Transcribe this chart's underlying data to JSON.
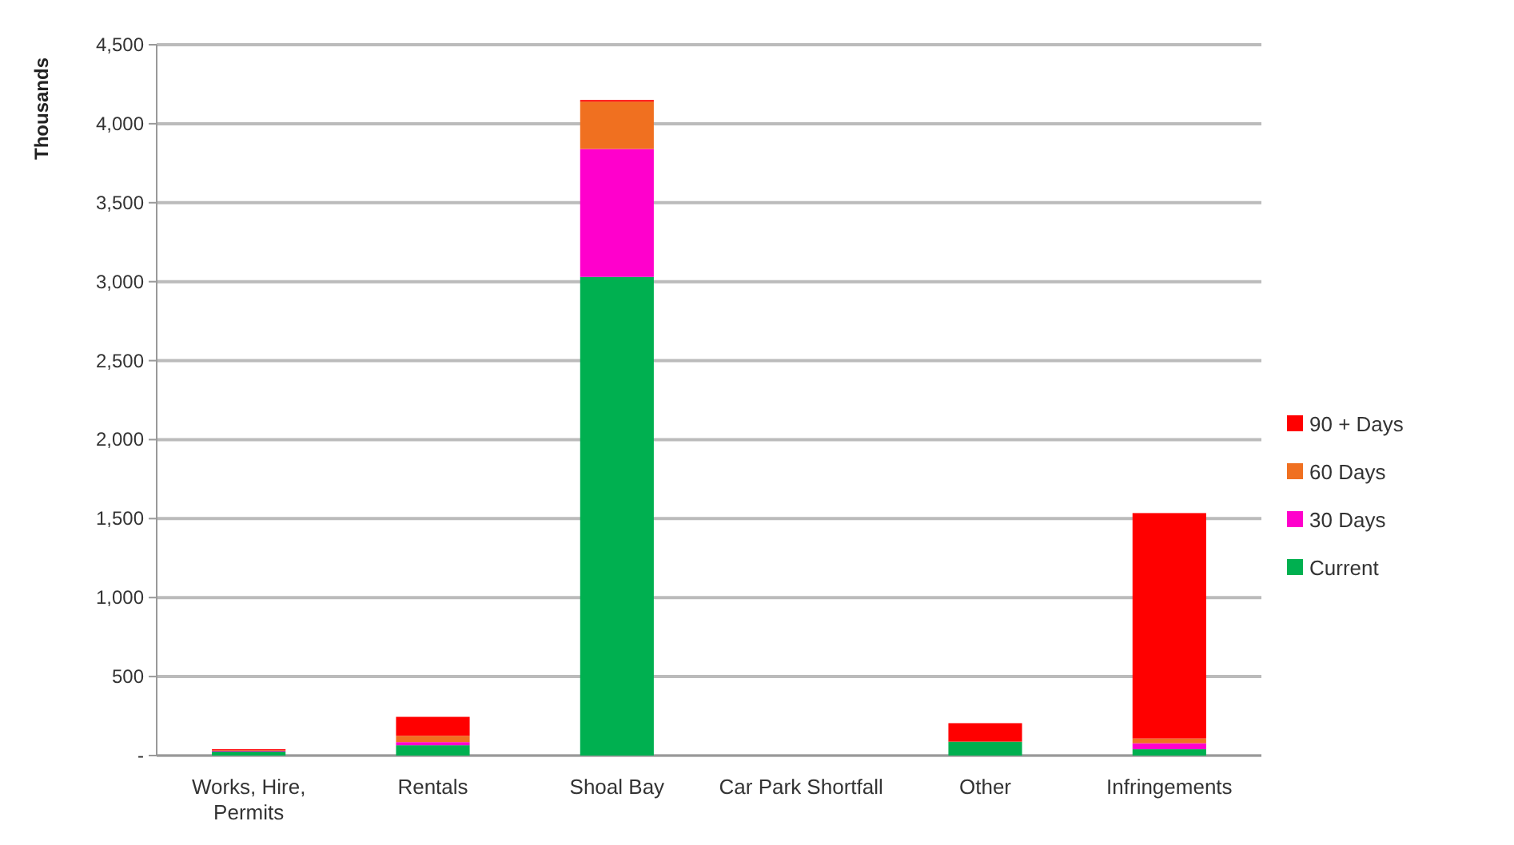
{
  "chart_data": {
    "type": "bar",
    "stacked": true,
    "ylabel": "Thousands",
    "categories": [
      "Works, Hire, Permits",
      "Rentals",
      "Shoal Bay",
      "Car Park Shortfall",
      "Other",
      "Infringements"
    ],
    "series": [
      {
        "name": "Current",
        "color": "#00b050",
        "values": [
          25,
          65,
          3030,
          0,
          88,
          40
        ]
      },
      {
        "name": "30 Days",
        "color": "#ff00cc",
        "values": [
          5,
          20,
          810,
          0,
          0,
          38
        ]
      },
      {
        "name": "60 Days",
        "color": "#f07020",
        "values": [
          5,
          40,
          300,
          0,
          0,
          30
        ]
      },
      {
        "name": "90 + Days",
        "color": "#ff0000",
        "values": [
          5,
          120,
          10,
          0,
          117,
          1427
        ]
      }
    ],
    "ylim": [
      0,
      4500
    ],
    "yticks": [
      {
        "value": 0,
        "label": "-"
      },
      {
        "value": 500,
        "label": "500"
      },
      {
        "value": 1000,
        "label": "1,000"
      },
      {
        "value": 1500,
        "label": "1,500"
      },
      {
        "value": 2000,
        "label": "2,000"
      },
      {
        "value": 2500,
        "label": "2,500"
      },
      {
        "value": 3000,
        "label": "3,000"
      },
      {
        "value": 3500,
        "label": "3,500"
      },
      {
        "value": 4000,
        "label": "4,000"
      },
      {
        "value": 4500,
        "label": "4,500"
      }
    ],
    "grid": "y",
    "legend": "right"
  }
}
